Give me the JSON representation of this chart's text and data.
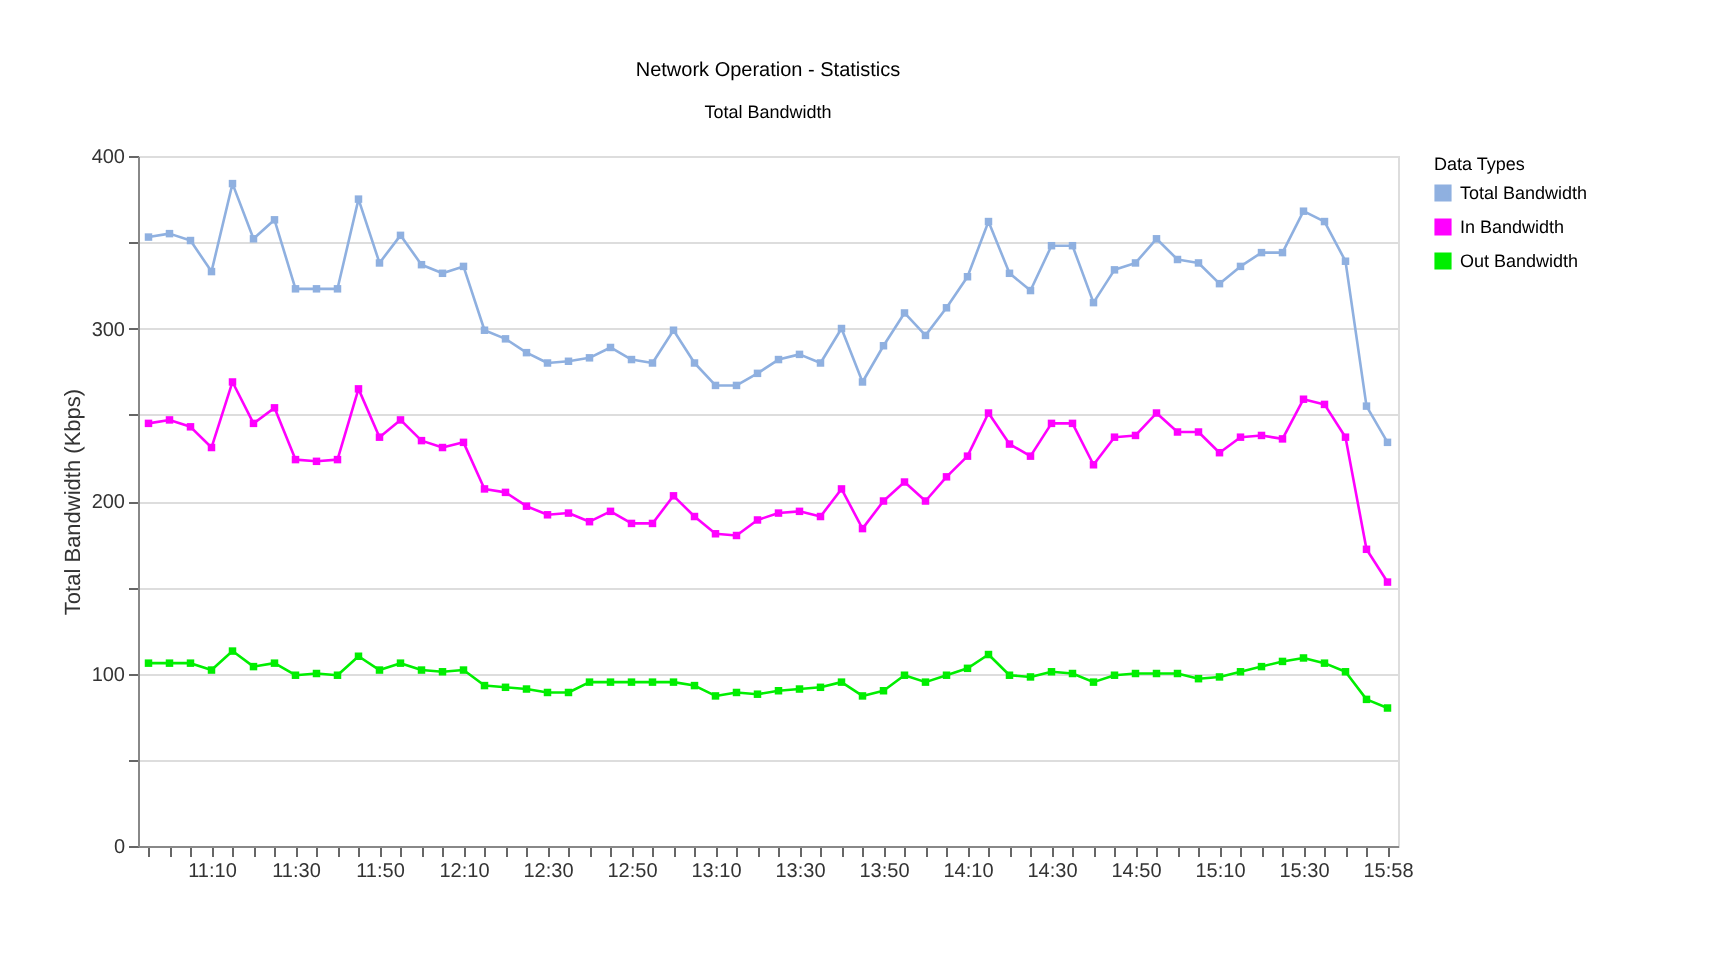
{
  "chart_data": {
    "type": "line",
    "title": "Network Operation - Statistics",
    "subtitle": "Total Bandwidth",
    "ylabel": "Total Bandwidth (Kbps)",
    "legend_title": "Data Types",
    "categories": [
      null,
      null,
      null,
      "11:10",
      null,
      null,
      null,
      "11:30",
      null,
      null,
      null,
      "11:50",
      null,
      null,
      null,
      "12:10",
      null,
      null,
      null,
      "12:30",
      null,
      null,
      null,
      "12:50",
      null,
      null,
      null,
      "13:10",
      null,
      null,
      null,
      "13:30",
      null,
      null,
      null,
      "13:50",
      null,
      null,
      null,
      "14:10",
      null,
      null,
      null,
      "14:30",
      null,
      null,
      null,
      "14:50",
      null,
      null,
      null,
      "15:10",
      null,
      null,
      null,
      "15:30",
      null,
      null,
      null,
      "15:58"
    ],
    "series": [
      {
        "name": "Total Bandwidth",
        "color": "#8fb0e0",
        "values": [
          353,
          355,
          351,
          333,
          384,
          352,
          363,
          323,
          323,
          323,
          375,
          338,
          354,
          337,
          332,
          336,
          299,
          294,
          286,
          280,
          281,
          283,
          289,
          282,
          280,
          299,
          280,
          267,
          267,
          274,
          282,
          285,
          280,
          300,
          269,
          290,
          309,
          296,
          312,
          330,
          362,
          332,
          322,
          348,
          348,
          315,
          334,
          338,
          352,
          340,
          338,
          326,
          336,
          344,
          344,
          368,
          362,
          339,
          255,
          234
        ]
      },
      {
        "name": "In Bandwidth",
        "color": "#ff00ff",
        "values": [
          245,
          247,
          243,
          231,
          269,
          245,
          254,
          224,
          223,
          224,
          265,
          237,
          247,
          235,
          231,
          234,
          207,
          205,
          197,
          192,
          193,
          188,
          194,
          187,
          187,
          203,
          191,
          181,
          180,
          189,
          193,
          194,
          191,
          207,
          184,
          200,
          211,
          200,
          214,
          226,
          251,
          233,
          226,
          245,
          245,
          221,
          237,
          238,
          251,
          240,
          240,
          228,
          237,
          238,
          236,
          259,
          256,
          237,
          172,
          153
        ]
      },
      {
        "name": "Out Bandwidth",
        "color": "#00ee00",
        "values": [
          106,
          106,
          106,
          102,
          113,
          104,
          106,
          99,
          100,
          99,
          110,
          102,
          106,
          102,
          101,
          102,
          93,
          92,
          91,
          89,
          89,
          95,
          95,
          95,
          95,
          95,
          93,
          87,
          89,
          88,
          90,
          91,
          92,
          95,
          87,
          90,
          99,
          95,
          99,
          103,
          111,
          99,
          98,
          101,
          100,
          95,
          99,
          100,
          100,
          100,
          97,
          98,
          101,
          104,
          107,
          109,
          106,
          101,
          85,
          80
        ]
      }
    ],
    "ylim": [
      0,
      400
    ],
    "yticks": [
      0,
      {
        "value": 50,
        "label": null
      },
      100,
      {
        "value": 150,
        "label": null
      },
      200,
      {
        "value": 250,
        "label": null
      },
      300,
      {
        "value": 350,
        "label": null
      },
      400
    ],
    "grid": "y",
    "legend": "top right",
    "marker": "square",
    "line_style": "solid"
  }
}
